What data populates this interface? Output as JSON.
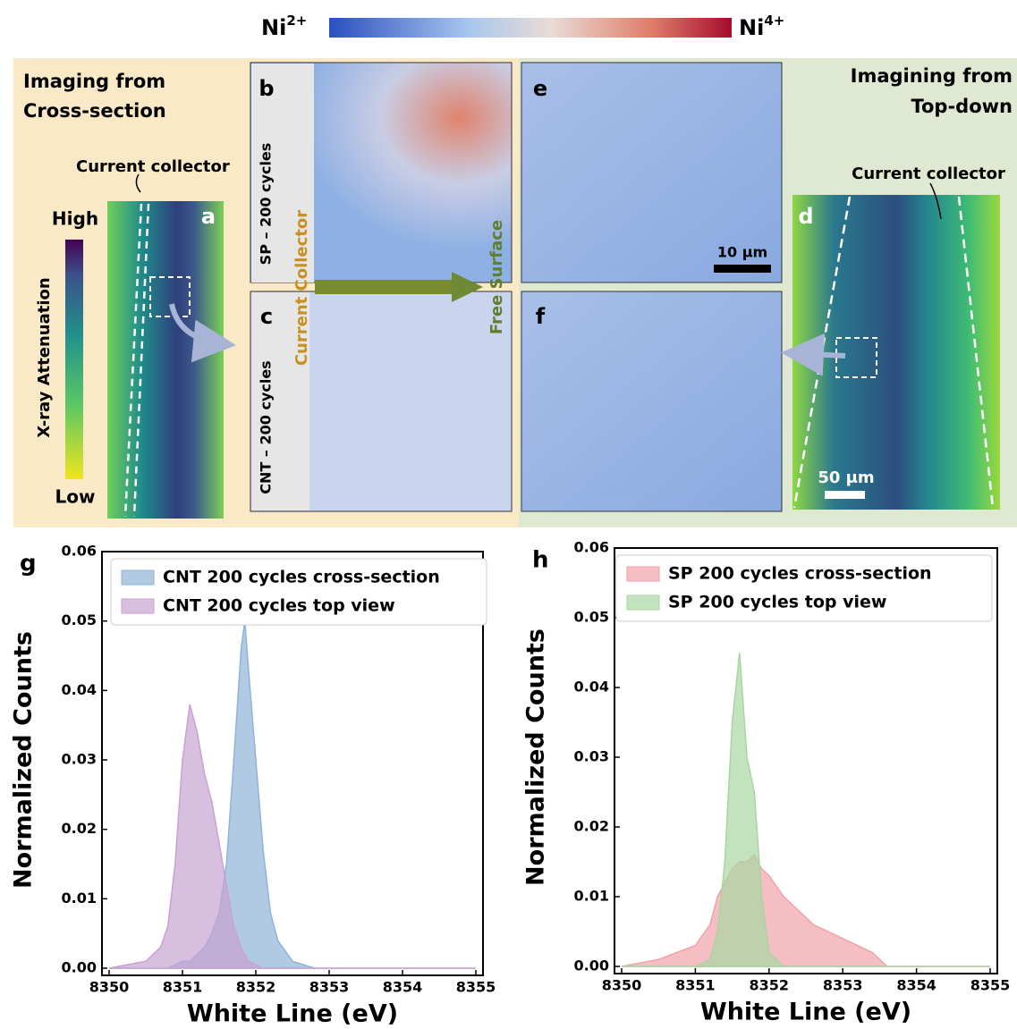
{
  "figure": {
    "colorbar": {
      "left": {
        "base": "Ni",
        "sup": "2+"
      },
      "right": {
        "base": "Ni",
        "sup": "4+"
      }
    },
    "left_heading": [
      "Imaging from",
      "Cross-section"
    ],
    "right_heading": [
      "Imagining from",
      "Top-down"
    ],
    "panel_a": {
      "letter": "a",
      "collector": "Current collector",
      "high": "High",
      "low": "Low",
      "axis": "X-ray Attenuation"
    },
    "panel_b": {
      "letter": "b",
      "label": "SP – 200 cycles"
    },
    "panel_c": {
      "letter": "c",
      "label": "CNT – 200 cycles"
    },
    "panel_e": {
      "letter": "e",
      "scale": "10 μm"
    },
    "panel_f": {
      "letter": "f"
    },
    "panel_d": {
      "letter": "d",
      "collector": "Current collector",
      "scale": "50 μm"
    },
    "arrow": {
      "start": "Current Collector",
      "end": "Free Surface"
    }
  },
  "chart_data": [
    {
      "type": "area",
      "annotation": "g",
      "xlabel": "White Line (eV)",
      "ylabel": "Normalized Counts",
      "legend": "upper left",
      "x": [
        8350,
        8350.5,
        8350.7,
        8350.8,
        8350.9,
        8351.0,
        8351.1,
        8351.2,
        8351.3,
        8351.4,
        8351.5,
        8351.6,
        8351.7,
        8351.8,
        8351.85,
        8351.9,
        8352.0,
        8352.1,
        8352.2,
        8352.3,
        8352.5,
        8352.8,
        8353,
        8354,
        8355
      ],
      "series": [
        {
          "name": "CNT 200 cycles cross-section",
          "color": "#8fb4d9",
          "values": [
            0,
            0,
            0,
            0,
            0.0005,
            0.001,
            0.001,
            0.002,
            0.003,
            0.005,
            0.008,
            0.015,
            0.03,
            0.046,
            0.05,
            0.043,
            0.03,
            0.017,
            0.008,
            0.004,
            0.001,
            0,
            0,
            0,
            0
          ]
        },
        {
          "name": "CNT 200 cycles top view",
          "color": "#c8a2d2",
          "values": [
            0,
            0.001,
            0.003,
            0.006,
            0.015,
            0.03,
            0.038,
            0.034,
            0.028,
            0.024,
            0.018,
            0.012,
            0.006,
            0.003,
            0.002,
            0.001,
            0.0005,
            0,
            0,
            0,
            0,
            0,
            0,
            0,
            0
          ]
        }
      ],
      "xlim": [
        8350,
        8355
      ],
      "xticks": [
        8350,
        8351,
        8352,
        8353,
        8354,
        8355
      ],
      "ylim": [
        0,
        0.06
      ],
      "yticks": [
        {
          "value": 0,
          "label": "0.00"
        },
        0.01,
        0.02,
        0.03,
        0.04,
        0.05,
        0.06
      ]
    },
    {
      "type": "area",
      "annotation": "h",
      "xlabel": "White Line (eV)",
      "ylabel": "Normalized Counts",
      "legend": "upper right",
      "x": [
        8350,
        8350.5,
        8351,
        8351.2,
        8351.3,
        8351.4,
        8351.5,
        8351.6,
        8351.7,
        8351.8,
        8351.9,
        8352,
        8352.2,
        8352.4,
        8352.6,
        8352.8,
        8353,
        8353.2,
        8353.4,
        8353.6,
        8354,
        8355
      ],
      "series": [
        {
          "name": "SP 200 cycles cross-section",
          "color": "#f0a2aa",
          "values": [
            0,
            0.001,
            0.003,
            0.006,
            0.01,
            0.012,
            0.014,
            0.015,
            0.015,
            0.016,
            0.014,
            0.013,
            0.01,
            0.008,
            0.006,
            0.005,
            0.004,
            0.003,
            0.002,
            0,
            0,
            0
          ]
        },
        {
          "name": "SP 200 cycles top view",
          "color": "#a9d5a2",
          "values": [
            0,
            0,
            0,
            0.001,
            0.005,
            0.015,
            0.035,
            0.045,
            0.03,
            0.025,
            0.01,
            0.002,
            0,
            0,
            0,
            0,
            0,
            0,
            0,
            0,
            0,
            0
          ]
        }
      ],
      "xlim": [
        8350,
        8355
      ],
      "xticks": [
        8350,
        8351,
        8352,
        8353,
        8354,
        8355
      ],
      "ylim": [
        0,
        0.06
      ],
      "yticks": [
        {
          "value": 0,
          "label": "0.00"
        },
        0.01,
        0.02,
        0.03,
        0.04,
        0.05,
        0.06
      ]
    }
  ]
}
